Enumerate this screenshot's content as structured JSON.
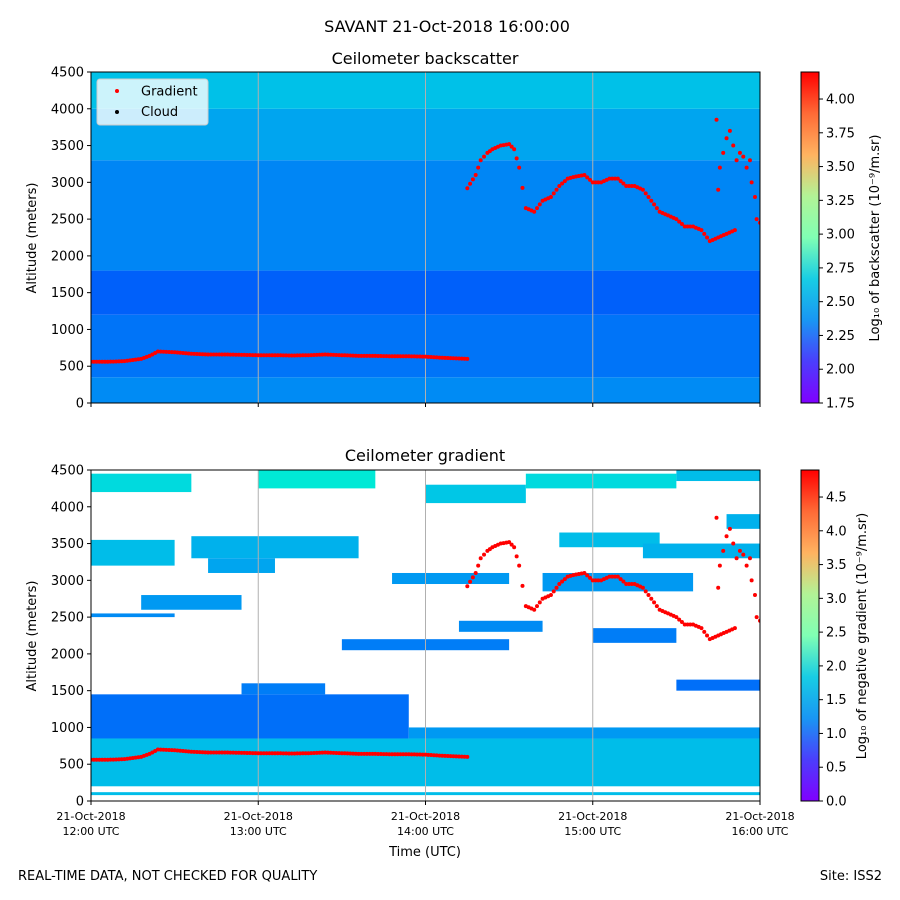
{
  "suptitle": "SAVANT 21-Oct-2018 16:00:00",
  "footer": {
    "left": "REAL-TIME DATA, NOT CHECKED FOR QUALITY",
    "right": "Site: ISS2"
  },
  "colors": {
    "gradient_marker": "#ff0000",
    "cloud_marker": "#000000",
    "colormap": "rainbow",
    "vertical_grid": "#b0b0b0"
  },
  "time_ticks": [
    {
      "date": "21-Oct-2018",
      "time": "12:00 UTC"
    },
    {
      "date": "21-Oct-2018",
      "time": "13:00 UTC"
    },
    {
      "date": "21-Oct-2018",
      "time": "14:00 UTC"
    },
    {
      "date": "21-Oct-2018",
      "time": "15:00 UTC"
    },
    {
      "date": "21-Oct-2018",
      "time": "16:00 UTC"
    }
  ],
  "chart_data": [
    {
      "type": "heatmap",
      "title": "Ceilometer backscatter",
      "xlabel": "",
      "ylabel": "Altitude (meters)",
      "x_range": [
        "21-Oct-2018 12:00 UTC",
        "21-Oct-2018 16:00 UTC"
      ],
      "xlim_hours": [
        12,
        16
      ],
      "ylim": [
        0,
        4500
      ],
      "y_ticks": [
        0,
        500,
        1000,
        1500,
        2000,
        2500,
        3000,
        3500,
        4000,
        4500
      ],
      "grid": "vertical lines at hourly ticks",
      "colorbar": {
        "label": "Log₁₀ of backscatter (10⁻⁹/m.sr)",
        "range": [
          1.75,
          4.2
        ],
        "ticks": [
          "1.75",
          "2.00",
          "2.25",
          "2.50",
          "2.75",
          "3.00",
          "3.25",
          "3.50",
          "3.75",
          "4.00"
        ],
        "colormap": "rainbow"
      },
      "legend": {
        "placement": "top-left",
        "entries": [
          {
            "label": "Gradient",
            "color": "#ff0000"
          },
          {
            "label": "Cloud",
            "color": "#000000"
          }
        ]
      },
      "field_description_levels": [
        {
          "alt": [
            0,
            350
          ],
          "value": 2.2
        },
        {
          "alt": [
            350,
            1200
          ],
          "value": 2.12
        },
        {
          "alt": [
            1200,
            1800
          ],
          "value": 2.05
        },
        {
          "alt": [
            1800,
            3300
          ],
          "value": 2.18
        },
        {
          "alt": [
            3300,
            4000
          ],
          "value": 2.3
        },
        {
          "alt": [
            4000,
            4500
          ],
          "value": 2.42
        }
      ]
    },
    {
      "type": "heatmap",
      "title": "Ceilometer gradient",
      "xlabel": "Time (UTC)",
      "ylabel": "Altitude (meters)",
      "xlim_hours": [
        12,
        16
      ],
      "ylim": [
        0,
        4500
      ],
      "y_ticks": [
        0,
        500,
        1000,
        1500,
        2000,
        2500,
        3000,
        3500,
        4000,
        4500
      ],
      "grid": "vertical lines at hourly ticks",
      "colorbar": {
        "label": "Log₁₀ of negative gradient (10⁻⁹/m.sr)",
        "range": [
          0.0,
          4.9
        ],
        "ticks": [
          "0.0",
          "0.5",
          "1.0",
          "1.5",
          "2.0",
          "2.5",
          "3.0",
          "3.5",
          "4.0",
          "4.5"
        ],
        "colormap": "rainbow"
      },
      "cloud_layers": [
        {
          "t": [
            12.0,
            16.0
          ],
          "alt": [
            80,
            120
          ],
          "value": 1.3
        },
        {
          "t": [
            12.0,
            16.0
          ],
          "alt": [
            200,
            850
          ],
          "value": 1.3
        },
        {
          "t": [
            12.0,
            13.9
          ],
          "alt": [
            850,
            1450
          ],
          "value": 0.7
        },
        {
          "t": [
            13.9,
            16.0
          ],
          "alt": [
            850,
            1000
          ],
          "value": 1.0
        },
        {
          "t": [
            12.9,
            13.4
          ],
          "alt": [
            1450,
            1600
          ],
          "value": 0.8
        },
        {
          "t": [
            12.0,
            12.5
          ],
          "alt": [
            2500,
            2550
          ],
          "value": 0.9
        },
        {
          "t": [
            12.3,
            12.9
          ],
          "alt": [
            2600,
            2800
          ],
          "value": 1.0
        },
        {
          "t": [
            12.0,
            12.5
          ],
          "alt": [
            3200,
            3550
          ],
          "value": 1.3
        },
        {
          "t": [
            12.6,
            13.6
          ],
          "alt": [
            3300,
            3600
          ],
          "value": 1.2
        },
        {
          "t": [
            12.7,
            13.1
          ],
          "alt": [
            3100,
            3300
          ],
          "value": 1.1
        },
        {
          "t": [
            12.0,
            12.6
          ],
          "alt": [
            4200,
            4450
          ],
          "value": 1.6
        },
        {
          "t": [
            13.0,
            13.7
          ],
          "alt": [
            4250,
            4500
          ],
          "value": 1.8
        },
        {
          "t": [
            14.0,
            14.6
          ],
          "alt": [
            4050,
            4300
          ],
          "value": 1.4
        },
        {
          "t": [
            14.6,
            15.5
          ],
          "alt": [
            4250,
            4450
          ],
          "value": 1.6
        },
        {
          "t": [
            15.5,
            16.0
          ],
          "alt": [
            4350,
            4500
          ],
          "value": 1.3
        },
        {
          "t": [
            13.8,
            14.5
          ],
          "alt": [
            2950,
            3100
          ],
          "value": 1.0
        },
        {
          "t": [
            14.7,
            15.6
          ],
          "alt": [
            2850,
            3100
          ],
          "value": 1.0
        },
        {
          "t": [
            14.8,
            15.4
          ],
          "alt": [
            3450,
            3650
          ],
          "value": 1.3
        },
        {
          "t": [
            15.3,
            16.0
          ],
          "alt": [
            3300,
            3500
          ],
          "value": 1.2
        },
        {
          "t": [
            13.5,
            14.5
          ],
          "alt": [
            2050,
            2200
          ],
          "value": 0.8
        },
        {
          "t": [
            14.2,
            14.7
          ],
          "alt": [
            2300,
            2450
          ],
          "value": 0.9
        },
        {
          "t": [
            15.0,
            15.5
          ],
          "alt": [
            2150,
            2350
          ],
          "value": 0.8
        },
        {
          "t": [
            15.5,
            16.0
          ],
          "alt": [
            1500,
            1650
          ],
          "value": 0.7
        },
        {
          "t": [
            15.8,
            16.0
          ],
          "alt": [
            3700,
            3900
          ],
          "value": 1.2
        }
      ]
    }
  ],
  "gradient_series_1": {
    "name": "Gradient",
    "x_hours": [
      12.0,
      12.1,
      12.2,
      12.3,
      12.35,
      12.4,
      12.5,
      12.6,
      12.7,
      12.8,
      12.9,
      13.0,
      13.1,
      13.2,
      13.3,
      13.4,
      13.5,
      13.6,
      13.7,
      13.8,
      13.9,
      14.0,
      14.1,
      14.2,
      14.25
    ],
    "altitude_m": [
      560,
      560,
      570,
      600,
      640,
      700,
      690,
      670,
      660,
      660,
      655,
      650,
      650,
      645,
      650,
      660,
      650,
      640,
      640,
      635,
      635,
      630,
      615,
      605,
      600
    ]
  },
  "gradient_series_2": {
    "name": "Gradient",
    "x_hours": [
      14.25,
      14.3,
      14.33,
      14.37,
      14.4,
      14.45,
      14.5,
      14.53,
      14.56,
      14.6,
      14.65,
      14.7,
      14.75,
      14.8,
      14.85,
      14.9,
      14.95,
      15.0,
      15.05,
      15.1,
      15.15,
      15.2,
      15.25,
      15.3,
      15.35,
      15.4,
      15.45,
      15.5,
      15.55,
      15.6,
      15.65,
      15.7,
      15.75,
      15.8,
      15.85
    ],
    "altitude_m": [
      2920,
      3100,
      3300,
      3400,
      3450,
      3500,
      3520,
      3450,
      3200,
      2650,
      2600,
      2750,
      2800,
      2950,
      3050,
      3080,
      3100,
      3000,
      3000,
      3050,
      3050,
      2950,
      2950,
      2900,
      2750,
      2600,
      2550,
      2500,
      2400,
      2400,
      2350,
      2200,
      2250,
      2300,
      2350
    ]
  },
  "gradient_series_3": {
    "name": "Gradient",
    "x_hours": [
      15.74,
      15.75,
      15.76,
      15.78,
      15.8,
      15.82,
      15.84,
      15.86,
      15.88,
      15.9,
      15.92,
      15.94,
      15.95,
      15.97,
      15.98,
      16.0
    ],
    "altitude_m": [
      3850,
      2900,
      3200,
      3400,
      3600,
      3700,
      3500,
      3300,
      3400,
      3350,
      3200,
      3300,
      3000,
      2800,
      2500,
      2450
    ]
  }
}
